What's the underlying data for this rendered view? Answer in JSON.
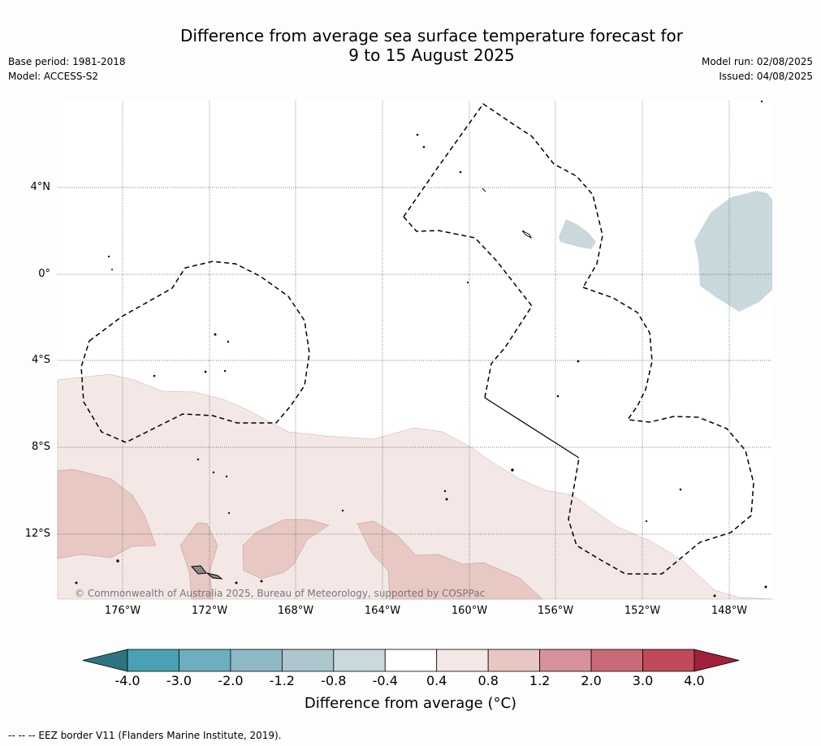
{
  "title_line1": "Difference from average sea surface temperature forecast for",
  "title_line2": "9 to 15 August 2025",
  "base_period": "Base period: 1981-2018",
  "model": "Model: ACCESS-S2",
  "model_run": "Model run: 02/08/2025",
  "issued": "Issued: 04/08/2025",
  "lat_labels": [
    "4°N",
    "0°",
    "4°S",
    "8°S",
    "12°S"
  ],
  "lon_labels": [
    "176°W",
    "172°W",
    "168°W",
    "164°W",
    "160°W",
    "156°W",
    "152°W",
    "148°W"
  ],
  "copyright": "© Commonwealth of Australia 2025, Bureau of Meteorology, supported by COSPPac",
  "colorbar": {
    "ticks": [
      "-4.0",
      "-3.0",
      "-2.0",
      "-1.2",
      "-0.8",
      "-0.4",
      "0.4",
      "0.8",
      "1.2",
      "2.0",
      "3.0",
      "4.0"
    ],
    "colors": [
      "#2e7480",
      "#4aa1b4",
      "#6dafbe",
      "#8dbac6",
      "#acc7cd",
      "#c9d9dd",
      "#ffffff",
      "#f4e7e6",
      "#e8c7c2",
      "#d6919a",
      "#c96b76",
      "#c04a5a",
      "#a3203c"
    ],
    "label": "Difference from average (°C)"
  },
  "eez_note": "--  --  -- EEZ border V11 (Flanders Marine Institute, 2019)."
}
